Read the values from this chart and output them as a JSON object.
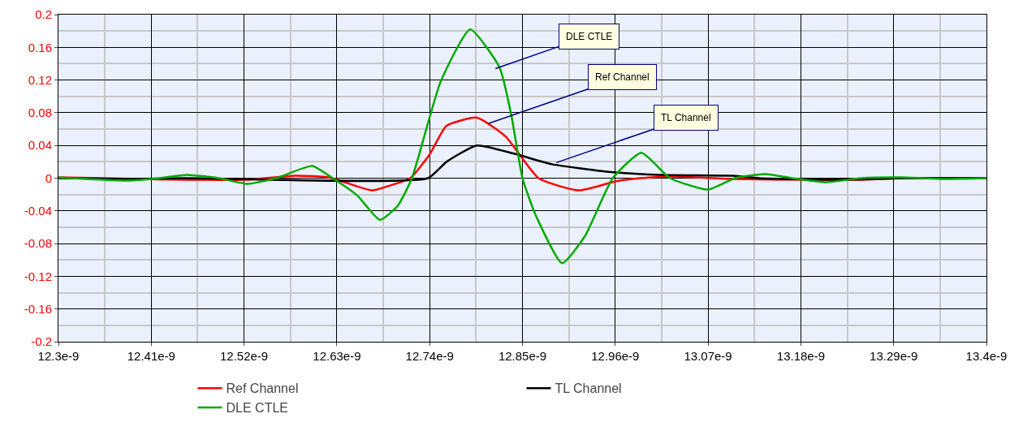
{
  "chart_data": {
    "type": "line",
    "xlim": [
      1.23e-08,
      1.34e-08
    ],
    "xticks": [
      {
        "value": 1.23e-08,
        "label": "12.3e-9"
      },
      {
        "value": 1.241e-08,
        "label": "12.41e-9"
      },
      {
        "value": 1.252e-08,
        "label": "12.52e-9"
      },
      {
        "value": 1.263e-08,
        "label": "12.63e-9"
      },
      {
        "value": 1.274e-08,
        "label": "12.74e-9"
      },
      {
        "value": 1.285e-08,
        "label": "12.85e-9"
      },
      {
        "value": 1.296e-08,
        "label": "12.96e-9"
      },
      {
        "value": 1.307e-08,
        "label": "13.07e-9"
      },
      {
        "value": 1.318e-08,
        "label": "13.18e-9"
      },
      {
        "value": 1.329e-08,
        "label": "13.29e-9"
      },
      {
        "value": 1.34e-08,
        "label": "13.4e-9"
      }
    ],
    "ylim": [
      -0.2,
      0.2
    ],
    "yticks": [
      -0.2,
      -0.16,
      -0.12,
      -0.08,
      -0.04,
      0,
      0.04,
      0.08,
      0.12,
      0.16,
      0.2
    ],
    "grid": true,
    "legend": "bottom",
    "marker": "none",
    "line_style": "solid",
    "series": [
      {
        "name": "Ref Channel",
        "color": "#ff0000",
        "x": [
          1.23e-08,
          1.24e-08,
          1.252e-08,
          1.258e-08,
          1.262e-08,
          1.2672e-08,
          1.2693e-08,
          1.2717e-08,
          1.274e-08,
          1.276e-08,
          1.2796e-08,
          1.283e-08,
          1.2869e-08,
          1.2917e-08,
          1.296e-08,
          1.299e-08,
          1.303e-08,
          1.31e-08,
          1.32e-08,
          1.325e-08,
          1.33e-08,
          1.34e-08
        ],
        "values": [
          0.001,
          -0.001,
          -0.002,
          0.003,
          0.001,
          -0.015,
          -0.009,
          0,
          0.029,
          0.064,
          0.074,
          0.051,
          0,
          -0.015,
          -0.004,
          0,
          0.002,
          -0.001,
          -0.002,
          -0.002,
          0,
          0
        ]
      },
      {
        "name": "TL Channel",
        "color": "#000000",
        "x": [
          1.23e-08,
          1.238e-08,
          1.245e-08,
          1.2738e-08,
          1.276e-08,
          1.2796e-08,
          1.284e-08,
          1.2885e-08,
          1.295e-08,
          1.3013e-08,
          1.31e-08,
          1.313e-08,
          1.322e-08,
          1.33e-08,
          1.34e-08
        ],
        "values": [
          0,
          -0.001,
          0,
          0,
          0.02,
          0.04,
          0.03,
          0.017,
          0.008,
          0.004,
          0.003,
          0,
          -0.002,
          0,
          0
        ]
      },
      {
        "name": "DLE CTLE",
        "color": "#00aa00",
        "x": [
          1.23e-08,
          1.2382e-08,
          1.242e-08,
          1.2452e-08,
          1.249e-08,
          1.2524e-08,
          1.2558e-08,
          1.2601e-08,
          1.2625e-08,
          1.2654e-08,
          1.2681e-08,
          1.2702e-08,
          1.2719e-08,
          1.2753e-08,
          1.2788e-08,
          1.2823e-08,
          1.2837e-08,
          1.285e-08,
          1.2866e-08,
          1.2897e-08,
          1.2924e-08,
          1.2957e-08,
          1.2991e-08,
          1.3025e-08,
          1.307e-08,
          1.3102e-08,
          1.3138e-08,
          1.3169e-08,
          1.321e-08,
          1.3251e-08,
          1.33e-08,
          1.335e-08,
          1.34e-08
        ],
        "values": [
          0.001,
          -0.003,
          0,
          0.004,
          0,
          -0.007,
          0,
          0.015,
          0,
          -0.021,
          -0.051,
          -0.034,
          0,
          0.118,
          0.182,
          0.135,
          0.076,
          0,
          -0.046,
          -0.104,
          -0.071,
          0,
          0.031,
          0,
          -0.014,
          0,
          0.005,
          0,
          -0.005,
          0,
          0.001,
          -0.001,
          0
        ]
      }
    ],
    "annotations": [
      {
        "text": "DLE CTLE",
        "x": 1.2818e-08,
        "y": 0.134
      },
      {
        "text": "Ref Channel",
        "x": 1.281e-08,
        "y": 0.067
      },
      {
        "text": "TL Channel",
        "x": 1.289e-08,
        "y": 0.019
      }
    ]
  }
}
